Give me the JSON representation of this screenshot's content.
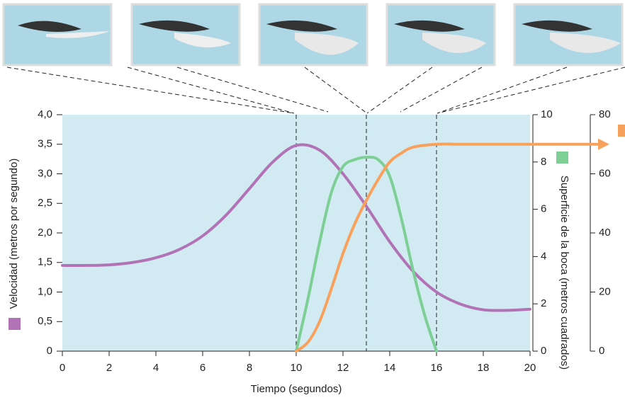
{
  "chart_data": {
    "type": "line",
    "xlabel": "Tiempo (segundos)",
    "ylabel": "Velocidad (metros por segundo)",
    "y2label": "Superficie de la boca (metros cuadrados)",
    "xlim": [
      0,
      20
    ],
    "xticks": [
      0,
      2,
      4,
      6,
      8,
      10,
      12,
      14,
      16,
      18,
      20
    ],
    "ylim": [
      0,
      4
    ],
    "yticks": [
      0,
      {
        "value": 0.5,
        "label": "0,5"
      },
      {
        "value": 1,
        "label": "1,0"
      },
      {
        "value": 1.5,
        "label": "1,5"
      },
      {
        "value": 2,
        "label": "2,0"
      },
      {
        "value": 2.5,
        "label": "2,5"
      },
      {
        "value": 3,
        "label": "3,0"
      },
      {
        "value": 3.5,
        "label": "3,5"
      },
      {
        "value": 4,
        "label": "4,0"
      }
    ],
    "y2lim": [
      0,
      10
    ],
    "y2ticks": [
      0,
      2,
      4,
      6,
      8,
      10
    ],
    "y3lim": [
      0,
      80
    ],
    "y3ticks": [
      0,
      20,
      40,
      60,
      80
    ],
    "vlines": [
      10,
      13,
      16
    ],
    "series": [
      {
        "color": "#b173b5",
        "axis": "y",
        "x": [
          0,
          1,
          2,
          3,
          4,
          5,
          6,
          7,
          8,
          9,
          10,
          11,
          12,
          13,
          14,
          15,
          16,
          17,
          18,
          19,
          20
        ],
        "values": [
          1.45,
          1.45,
          1.46,
          1.5,
          1.58,
          1.72,
          1.95,
          2.3,
          2.75,
          3.2,
          3.48,
          3.4,
          3.0,
          2.45,
          1.85,
          1.35,
          1.0,
          0.8,
          0.7,
          0.69,
          0.71
        ]
      },
      {
        "color": "#7dcf96",
        "axis": "y2",
        "x": [
          10,
          10.5,
          11,
          11.5,
          12,
          12.5,
          13,
          13.5,
          14,
          14.5,
          15,
          15.5,
          16
        ],
        "values": [
          0,
          2.2,
          4.6,
          6.7,
          7.8,
          8.1,
          8.2,
          8.1,
          7.4,
          5.6,
          3.4,
          1.5,
          0
        ]
      },
      {
        "color": "#f7a15c",
        "axis": "y3",
        "x": [
          10,
          10.5,
          11,
          11.5,
          12,
          12.5,
          13,
          13.5,
          14,
          14.5,
          15,
          16,
          17,
          18,
          19,
          20
        ],
        "values": [
          0,
          3,
          10,
          21,
          33,
          43,
          51,
          58,
          64,
          67,
          69,
          70,
          70,
          70,
          70,
          70
        ]
      }
    ]
  }
}
